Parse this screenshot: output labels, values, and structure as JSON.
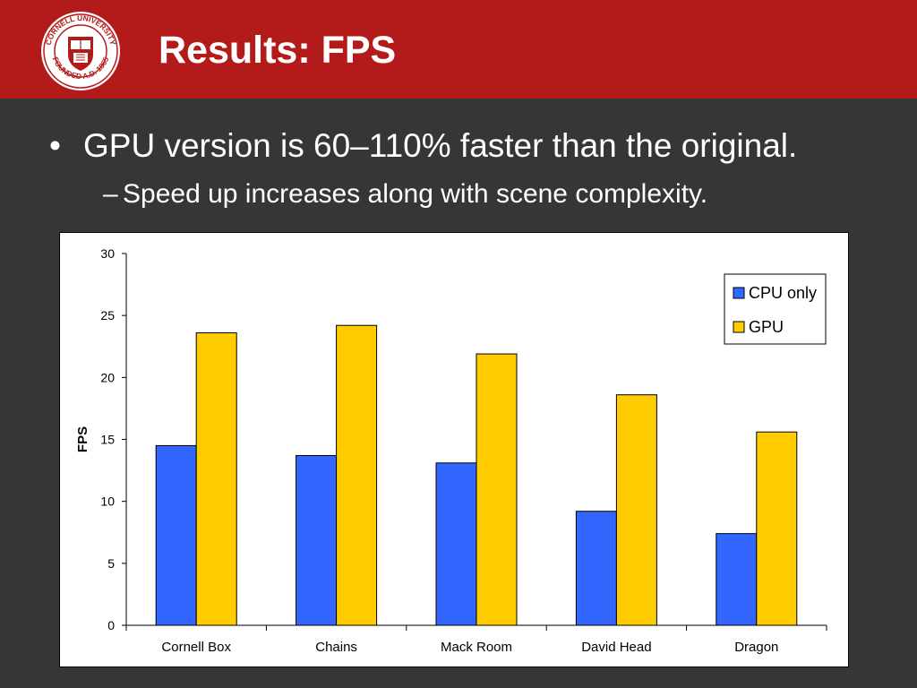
{
  "header": {
    "title": "Results: FPS",
    "seal": {
      "ring_text": "CORNELL UNIVERSITY FOUNDED A.D. 1865",
      "color": "#b31b1b"
    }
  },
  "content": {
    "bullets": [
      {
        "text": "GPU version is 60–110% faster than the original.",
        "marker": "•"
      },
      {
        "text": "Speed up increases along with scene complexity.",
        "marker": "–"
      }
    ]
  },
  "chart_data": {
    "type": "bar",
    "categories": [
      "Cornell Box",
      "Chains",
      "Mack Room",
      "David Head",
      "Dragon"
    ],
    "series": [
      {
        "name": "CPU only",
        "color": "#3366ff",
        "values": [
          14.5,
          13.7,
          13.1,
          9.2,
          7.4
        ]
      },
      {
        "name": "GPU",
        "color": "#ffcc00",
        "values": [
          23.6,
          24.2,
          21.9,
          18.6,
          15.6
        ]
      }
    ],
    "ylabel": "FPS",
    "ylim": [
      0,
      30
    ],
    "yticks": [
      "0",
      "5",
      "10",
      "15",
      "20",
      "25",
      "30"
    ],
    "grid": false,
    "legend_position": "top-right"
  }
}
